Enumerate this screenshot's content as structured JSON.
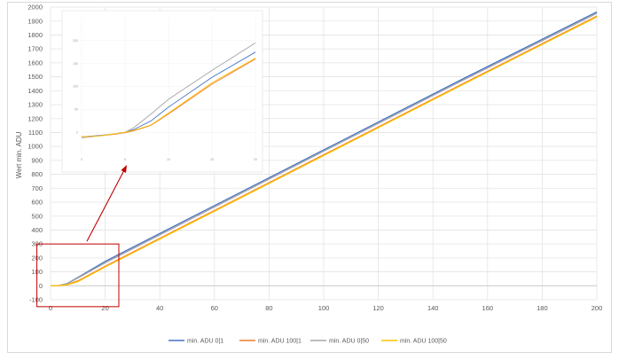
{
  "chart_data": [
    {
      "type": "line",
      "title": "",
      "xlabel": "",
      "ylabel": "Wert min. ADU",
      "xlim": [
        0,
        200
      ],
      "ylim": [
        -100,
        2000
      ],
      "xticks": [
        0,
        20,
        40,
        60,
        80,
        100,
        120,
        140,
        160,
        180,
        200
      ],
      "yticks": [
        -100,
        0,
        100,
        200,
        300,
        400,
        500,
        600,
        700,
        800,
        900,
        1000,
        1100,
        1200,
        1300,
        1400,
        1500,
        1600,
        1700,
        1800,
        1900,
        2000
      ],
      "tick_labels_x": [
        "0",
        "20",
        "40",
        "60",
        "80",
        "100",
        "120",
        "140",
        "160",
        "180",
        "200"
      ],
      "tick_labels_y": [
        "-100",
        "0",
        "100",
        "200",
        "300",
        "400",
        "500",
        "600",
        "700",
        "800",
        "900",
        "1000",
        "1100",
        "1200",
        "1300",
        "1400",
        "1500",
        "1600",
        "1700",
        "1800",
        "1900",
        "2000"
      ],
      "grid": true,
      "legend_position": "bottom",
      "series": [
        {
          "name": "min. ADU 0|1",
          "color": "#4472c4",
          "x": [
            0,
            3,
            6,
            10,
            20,
            50,
            100,
            150,
            200
          ],
          "values": [
            0,
            2,
            15,
            60,
            175,
            475,
            975,
            1475,
            1965
          ]
        },
        {
          "name": "min. ADU 100|1",
          "color": "#ed7d31",
          "x": [
            0,
            3,
            6,
            10,
            20,
            50,
            100,
            150,
            200
          ],
          "values": [
            0,
            2,
            8,
            35,
            140,
            440,
            940,
            1440,
            1935
          ]
        },
        {
          "name": "min. ADU 0|50",
          "color": "#a5a5a5",
          "x": [
            0,
            3,
            6,
            10,
            20,
            50,
            100,
            150,
            200
          ],
          "values": [
            0,
            2,
            14,
            55,
            165,
            465,
            965,
            1465,
            1955
          ]
        },
        {
          "name": "min. ADU 100|50",
          "color": "#ffc000",
          "x": [
            0,
            3,
            6,
            10,
            20,
            50,
            100,
            150,
            200
          ],
          "values": [
            0,
            2,
            6,
            30,
            135,
            435,
            935,
            1435,
            1930
          ]
        }
      ],
      "annotation": {
        "type": "zoom-box",
        "x_range": [
          -5,
          25
        ],
        "y_range": [
          -150,
          300
        ],
        "color": "#c00000"
      }
    },
    {
      "type": "line",
      "title": "",
      "xlabel": "",
      "ylabel": "",
      "xlim": [
        0,
        20
      ],
      "ylim": [
        -50,
        250
      ],
      "xticks": [
        0,
        5,
        10,
        15,
        20
      ],
      "yticks": [
        0,
        50,
        100,
        150,
        200
      ],
      "tick_labels_x": [
        "0",
        "5",
        "10",
        "15",
        "20"
      ],
      "tick_labels_y": [
        "0",
        "50",
        "100",
        "150",
        "200"
      ],
      "grid": true,
      "series": [
        {
          "color": "#4472c4",
          "x": [
            0,
            2,
            4,
            5,
            6,
            8,
            10,
            15,
            20
          ],
          "values": [
            -10,
            -7,
            -3,
            0,
            6,
            25,
            55,
            120,
            175
          ]
        },
        {
          "color": "#ed7d31",
          "x": [
            0,
            2,
            4,
            5,
            6,
            8,
            10,
            15,
            20
          ],
          "values": [
            -10,
            -8,
            -4,
            -1,
            3,
            15,
            40,
            105,
            160
          ]
        },
        {
          "color": "#a5a5a5",
          "x": [
            0,
            2,
            4,
            5,
            6,
            8,
            10,
            15,
            20
          ],
          "values": [
            -12,
            -8,
            -3,
            0,
            10,
            40,
            72,
            135,
            195
          ]
        },
        {
          "color": "#ffc000",
          "x": [
            0,
            2,
            4,
            5,
            6,
            8,
            10,
            15,
            20
          ],
          "values": [
            -10,
            -8,
            -3,
            0,
            4,
            16,
            42,
            108,
            162
          ]
        }
      ]
    }
  ]
}
